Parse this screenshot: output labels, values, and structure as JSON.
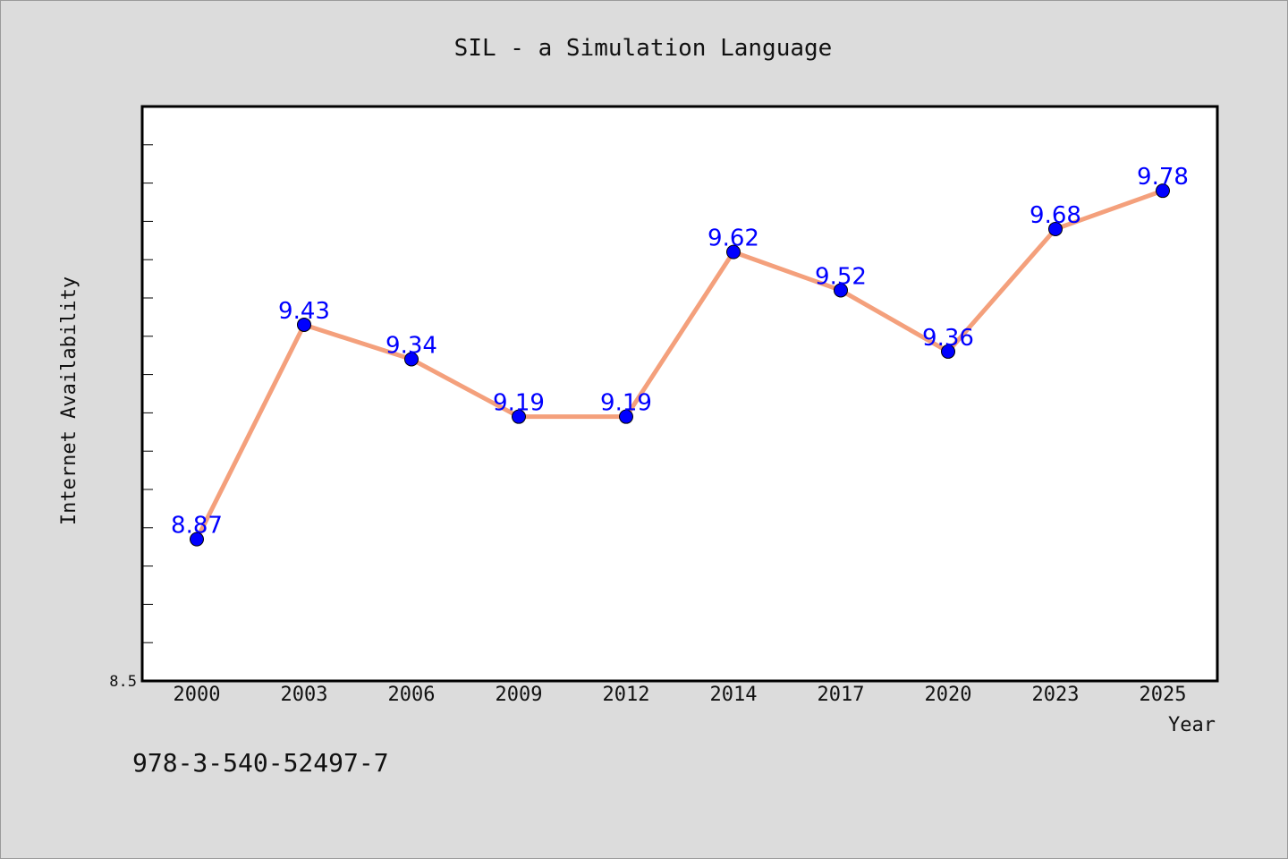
{
  "chart_data": {
    "type": "line",
    "title": "SIL - a Simulation Language",
    "xlabel": "Year",
    "ylabel": "Internet Availability",
    "categories": [
      "2000",
      "2003",
      "2006",
      "2009",
      "2012",
      "2014",
      "2017",
      "2020",
      "2023",
      "2025"
    ],
    "series": [
      {
        "values": [
          8.87,
          9.43,
          9.34,
          9.19,
          9.19,
          9.62,
          9.52,
          9.36,
          9.68,
          9.78
        ],
        "line_color": "#f4a07c",
        "marker_color": "#0000ff",
        "label_color": "#0000ff"
      }
    ],
    "ylim": [
      8.5,
      10.0
    ],
    "y_tick_labels": [
      "8.5"
    ],
    "grid": false,
    "legend": false
  },
  "footer": {
    "code": "978-3-540-52497-7"
  },
  "colors": {
    "background": "#dcdcdc",
    "plot_background": "#ffffff",
    "axis": "#000000"
  }
}
